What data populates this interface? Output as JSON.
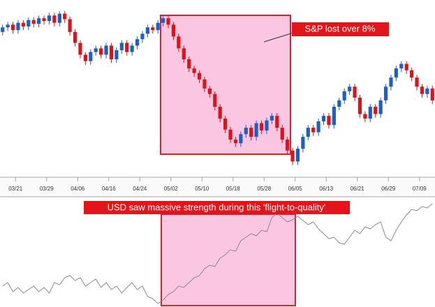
{
  "chart_data": [
    {
      "type": "candlestick",
      "annotation": "S&P lost over 8%",
      "xlim": [
        0,
        84
      ],
      "xticks": [
        {
          "value": 3,
          "label": "03/21"
        },
        {
          "value": 9,
          "label": "03/29"
        },
        {
          "value": 15,
          "label": "04/06"
        },
        {
          "value": 21,
          "label": "04/16"
        },
        {
          "value": 27,
          "label": "04/24"
        },
        {
          "value": 33,
          "label": "05/02"
        },
        {
          "value": 39,
          "label": "05/10"
        },
        {
          "value": 45,
          "label": "05/18"
        },
        {
          "value": 51,
          "label": "05/28"
        },
        {
          "value": 57,
          "label": "06/05"
        },
        {
          "value": 63,
          "label": "06/13"
        },
        {
          "value": 69,
          "label": "06/21"
        },
        {
          "value": 75,
          "label": "06/29"
        },
        {
          "value": 81,
          "label": "07/09"
        }
      ],
      "ylim": [
        1030,
        1225
      ],
      "up_color": "#1f5fbf",
      "down_color": "#d9141b",
      "open": [
        1190,
        1195,
        1198,
        1192,
        1200,
        1196,
        1203,
        1199,
        1205,
        1202,
        1208,
        1200,
        1210,
        1204,
        1190,
        1178,
        1165,
        1158,
        1168,
        1172,
        1165,
        1175,
        1160,
        1170,
        1178,
        1168,
        1175,
        1182,
        1188,
        1195,
        1192,
        1200,
        1205,
        1198,
        1185,
        1172,
        1160,
        1150,
        1145,
        1138,
        1128,
        1122,
        1108,
        1095,
        1083,
        1072,
        1068,
        1078,
        1085,
        1075,
        1090,
        1082,
        1093,
        1098,
        1085,
        1072,
        1060,
        1048,
        1062,
        1075,
        1085,
        1080,
        1092,
        1098,
        1088,
        1108,
        1115,
        1125,
        1130,
        1118,
        1100,
        1095,
        1108,
        1100,
        1115,
        1130,
        1140,
        1150,
        1155,
        1148,
        1140,
        1130,
        1122,
        1128
      ],
      "high": [
        1198,
        1201,
        1201,
        1203,
        1203,
        1206,
        1206,
        1208,
        1208,
        1211,
        1211,
        1213,
        1213,
        1207,
        1193,
        1181,
        1168,
        1171,
        1175,
        1175,
        1178,
        1178,
        1173,
        1181,
        1181,
        1178,
        1185,
        1191,
        1198,
        1198,
        1203,
        1208,
        1208,
        1201,
        1188,
        1175,
        1163,
        1153,
        1148,
        1141,
        1131,
        1125,
        1111,
        1098,
        1086,
        1075,
        1081,
        1088,
        1088,
        1093,
        1093,
        1096,
        1101,
        1101,
        1088,
        1075,
        1063,
        1065,
        1078,
        1088,
        1088,
        1095,
        1101,
        1101,
        1111,
        1118,
        1128,
        1133,
        1133,
        1121,
        1103,
        1111,
        1111,
        1118,
        1133,
        1143,
        1153,
        1158,
        1158,
        1151,
        1143,
        1133,
        1131,
        1131
      ],
      "low": [
        1186,
        1191,
        1188,
        1188,
        1192,
        1192,
        1195,
        1195,
        1198,
        1198,
        1196,
        1196,
        1200,
        1186,
        1174,
        1161,
        1154,
        1154,
        1164,
        1161,
        1161,
        1156,
        1156,
        1166,
        1164,
        1164,
        1171,
        1178,
        1184,
        1188,
        1188,
        1196,
        1194,
        1181,
        1168,
        1156,
        1146,
        1141,
        1134,
        1124,
        1118,
        1104,
        1091,
        1079,
        1068,
        1064,
        1064,
        1074,
        1071,
        1071,
        1078,
        1078,
        1089,
        1081,
        1068,
        1056,
        1044,
        1044,
        1058,
        1071,
        1076,
        1076,
        1088,
        1084,
        1084,
        1104,
        1111,
        1121,
        1114,
        1096,
        1091,
        1091,
        1096,
        1096,
        1111,
        1126,
        1136,
        1146,
        1144,
        1136,
        1126,
        1118,
        1118,
        1111
      ],
      "close": [
        1195,
        1198,
        1192,
        1200,
        1196,
        1203,
        1199,
        1205,
        1202,
        1208,
        1200,
        1210,
        1204,
        1190,
        1178,
        1165,
        1158,
        1168,
        1172,
        1165,
        1175,
        1160,
        1170,
        1178,
        1168,
        1175,
        1182,
        1188,
        1195,
        1192,
        1200,
        1205,
        1198,
        1185,
        1172,
        1160,
        1150,
        1145,
        1138,
        1128,
        1122,
        1108,
        1095,
        1083,
        1072,
        1068,
        1078,
        1085,
        1075,
        1090,
        1082,
        1093,
        1098,
        1085,
        1072,
        1060,
        1048,
        1062,
        1075,
        1085,
        1080,
        1092,
        1098,
        1088,
        1108,
        1115,
        1125,
        1130,
        1118,
        1100,
        1095,
        1108,
        1100,
        1115,
        1130,
        1140,
        1150,
        1155,
        1148,
        1140,
        1130,
        1122,
        1128,
        1115
      ]
    },
    {
      "type": "line",
      "annotation": "USD saw massive strength during this 'flight-to-quality'",
      "ylim": [
        0,
        150
      ],
      "color": "#8a8a8a",
      "values": [
        30,
        35,
        22,
        28,
        20,
        25,
        30,
        22,
        28,
        20,
        35,
        32,
        42,
        45,
        38,
        42,
        30,
        35,
        40,
        28,
        35,
        25,
        30,
        20,
        28,
        35,
        25,
        30,
        15,
        12,
        5,
        10,
        18,
        22,
        30,
        28,
        35,
        42,
        45,
        55,
        60,
        58,
        70,
        75,
        82,
        80,
        95,
        100,
        105,
        102,
        110,
        108,
        128,
        135,
        128,
        122,
        125,
        130,
        124,
        118,
        122,
        112,
        105,
        98,
        100,
        92,
        90,
        100,
        110,
        105,
        115,
        112,
        118,
        122,
        100,
        95,
        110,
        122,
        132,
        140,
        138,
        144,
        142,
        148
      ]
    }
  ]
}
